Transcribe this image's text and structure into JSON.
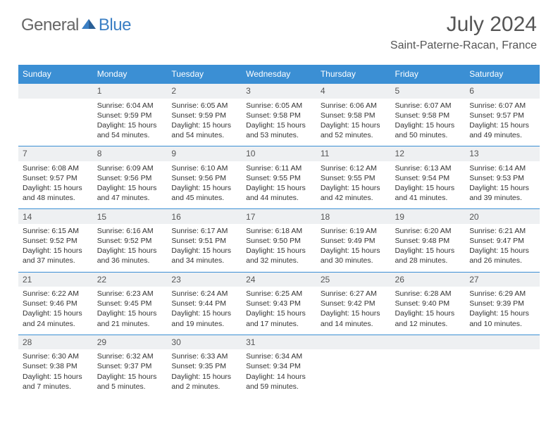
{
  "logo": {
    "general": "General",
    "blue": "Blue"
  },
  "title": "July 2024",
  "location": "Saint-Paterne-Racan, France",
  "colors": {
    "header_bg": "#3b8fd4",
    "header_text": "#ffffff",
    "daynum_bg": "#eef0f2",
    "border": "#3b8fd4",
    "logo_general": "#666666",
    "logo_blue": "#3b7fc4",
    "title_color": "#555555"
  },
  "day_headers": [
    "Sunday",
    "Monday",
    "Tuesday",
    "Wednesday",
    "Thursday",
    "Friday",
    "Saturday"
  ],
  "weeks": [
    {
      "nums": [
        "",
        "1",
        "2",
        "3",
        "4",
        "5",
        "6"
      ],
      "cells": [
        null,
        {
          "sr": "6:04 AM",
          "ss": "9:59 PM",
          "dl": "Daylight: 15 hours and 54 minutes."
        },
        {
          "sr": "6:05 AM",
          "ss": "9:59 PM",
          "dl": "Daylight: 15 hours and 54 minutes."
        },
        {
          "sr": "6:05 AM",
          "ss": "9:58 PM",
          "dl": "Daylight: 15 hours and 53 minutes."
        },
        {
          "sr": "6:06 AM",
          "ss": "9:58 PM",
          "dl": "Daylight: 15 hours and 52 minutes."
        },
        {
          "sr": "6:07 AM",
          "ss": "9:58 PM",
          "dl": "Daylight: 15 hours and 50 minutes."
        },
        {
          "sr": "6:07 AM",
          "ss": "9:57 PM",
          "dl": "Daylight: 15 hours and 49 minutes."
        }
      ]
    },
    {
      "nums": [
        "7",
        "8",
        "9",
        "10",
        "11",
        "12",
        "13"
      ],
      "cells": [
        {
          "sr": "6:08 AM",
          "ss": "9:57 PM",
          "dl": "Daylight: 15 hours and 48 minutes."
        },
        {
          "sr": "6:09 AM",
          "ss": "9:56 PM",
          "dl": "Daylight: 15 hours and 47 minutes."
        },
        {
          "sr": "6:10 AM",
          "ss": "9:56 PM",
          "dl": "Daylight: 15 hours and 45 minutes."
        },
        {
          "sr": "6:11 AM",
          "ss": "9:55 PM",
          "dl": "Daylight: 15 hours and 44 minutes."
        },
        {
          "sr": "6:12 AM",
          "ss": "9:55 PM",
          "dl": "Daylight: 15 hours and 42 minutes."
        },
        {
          "sr": "6:13 AM",
          "ss": "9:54 PM",
          "dl": "Daylight: 15 hours and 41 minutes."
        },
        {
          "sr": "6:14 AM",
          "ss": "9:53 PM",
          "dl": "Daylight: 15 hours and 39 minutes."
        }
      ]
    },
    {
      "nums": [
        "14",
        "15",
        "16",
        "17",
        "18",
        "19",
        "20"
      ],
      "cells": [
        {
          "sr": "6:15 AM",
          "ss": "9:52 PM",
          "dl": "Daylight: 15 hours and 37 minutes."
        },
        {
          "sr": "6:16 AM",
          "ss": "9:52 PM",
          "dl": "Daylight: 15 hours and 36 minutes."
        },
        {
          "sr": "6:17 AM",
          "ss": "9:51 PM",
          "dl": "Daylight: 15 hours and 34 minutes."
        },
        {
          "sr": "6:18 AM",
          "ss": "9:50 PM",
          "dl": "Daylight: 15 hours and 32 minutes."
        },
        {
          "sr": "6:19 AM",
          "ss": "9:49 PM",
          "dl": "Daylight: 15 hours and 30 minutes."
        },
        {
          "sr": "6:20 AM",
          "ss": "9:48 PM",
          "dl": "Daylight: 15 hours and 28 minutes."
        },
        {
          "sr": "6:21 AM",
          "ss": "9:47 PM",
          "dl": "Daylight: 15 hours and 26 minutes."
        }
      ]
    },
    {
      "nums": [
        "21",
        "22",
        "23",
        "24",
        "25",
        "26",
        "27"
      ],
      "cells": [
        {
          "sr": "6:22 AM",
          "ss": "9:46 PM",
          "dl": "Daylight: 15 hours and 24 minutes."
        },
        {
          "sr": "6:23 AM",
          "ss": "9:45 PM",
          "dl": "Daylight: 15 hours and 21 minutes."
        },
        {
          "sr": "6:24 AM",
          "ss": "9:44 PM",
          "dl": "Daylight: 15 hours and 19 minutes."
        },
        {
          "sr": "6:25 AM",
          "ss": "9:43 PM",
          "dl": "Daylight: 15 hours and 17 minutes."
        },
        {
          "sr": "6:27 AM",
          "ss": "9:42 PM",
          "dl": "Daylight: 15 hours and 14 minutes."
        },
        {
          "sr": "6:28 AM",
          "ss": "9:40 PM",
          "dl": "Daylight: 15 hours and 12 minutes."
        },
        {
          "sr": "6:29 AM",
          "ss": "9:39 PM",
          "dl": "Daylight: 15 hours and 10 minutes."
        }
      ]
    },
    {
      "nums": [
        "28",
        "29",
        "30",
        "31",
        "",
        "",
        ""
      ],
      "cells": [
        {
          "sr": "6:30 AM",
          "ss": "9:38 PM",
          "dl": "Daylight: 15 hours and 7 minutes."
        },
        {
          "sr": "6:32 AM",
          "ss": "9:37 PM",
          "dl": "Daylight: 15 hours and 5 minutes."
        },
        {
          "sr": "6:33 AM",
          "ss": "9:35 PM",
          "dl": "Daylight: 15 hours and 2 minutes."
        },
        {
          "sr": "6:34 AM",
          "ss": "9:34 PM",
          "dl": "Daylight: 14 hours and 59 minutes."
        },
        null,
        null,
        null
      ]
    }
  ],
  "labels": {
    "sunrise": "Sunrise:",
    "sunset": "Sunset:"
  }
}
